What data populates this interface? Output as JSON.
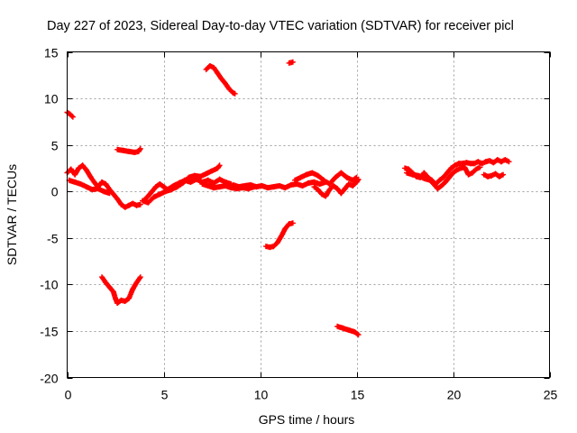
{
  "chart_data": {
    "type": "scatter",
    "title": "Day 227 of 2023, Sidereal Day-to-day VTEC variation (SDTVAR) for receiver picl",
    "xlabel": "GPS time / hours",
    "ylabel": "SDTVAR / TECUs",
    "xlim": [
      0,
      25
    ],
    "ylim": [
      -20,
      15
    ],
    "xticks": [
      0,
      5,
      10,
      15,
      20,
      25
    ],
    "yticks": [
      -20,
      -15,
      -10,
      -5,
      0,
      5,
      10,
      15
    ],
    "grid": true,
    "marker": "+",
    "color": "#ff0000",
    "segments": [
      {
        "name": "arc-01",
        "points": [
          [
            0.0,
            8.5
          ],
          [
            0.15,
            8.3
          ],
          [
            0.3,
            8.0
          ]
        ]
      },
      {
        "name": "arc-02",
        "points": [
          [
            0.0,
            2.0
          ],
          [
            0.2,
            2.4
          ],
          [
            0.4,
            1.8
          ],
          [
            0.6,
            2.5
          ],
          [
            0.8,
            2.8
          ],
          [
            1.0,
            2.3
          ],
          [
            1.2,
            1.6
          ],
          [
            1.4,
            1.0
          ],
          [
            1.6,
            0.5
          ],
          [
            1.8,
            1.0
          ],
          [
            2.0,
            0.8
          ],
          [
            2.2,
            0.2
          ],
          [
            2.4,
            -0.3
          ],
          [
            2.6,
            -0.8
          ],
          [
            2.8,
            -1.4
          ],
          [
            3.0,
            -1.7
          ],
          [
            3.2,
            -1.5
          ],
          [
            3.4,
            -1.3
          ],
          [
            3.6,
            -1.5
          ],
          [
            3.8,
            -1.4
          ]
        ]
      },
      {
        "name": "arc-03",
        "points": [
          [
            0.1,
            1.2
          ],
          [
            0.4,
            1.0
          ],
          [
            0.7,
            0.8
          ],
          [
            1.0,
            0.5
          ],
          [
            1.3,
            0.2
          ],
          [
            1.6,
            0.3
          ],
          [
            1.9,
            0.0
          ],
          [
            2.2,
            -0.2
          ]
        ]
      },
      {
        "name": "arc-04",
        "points": [
          [
            2.6,
            4.5
          ],
          [
            2.9,
            4.4
          ],
          [
            3.2,
            4.3
          ],
          [
            3.5,
            4.2
          ],
          [
            3.7,
            4.3
          ],
          [
            3.8,
            4.6
          ]
        ]
      },
      {
        "name": "arc-05",
        "points": [
          [
            1.8,
            -9.2
          ],
          [
            2.0,
            -9.8
          ],
          [
            2.2,
            -10.3
          ],
          [
            2.4,
            -10.8
          ],
          [
            2.5,
            -11.5
          ],
          [
            2.6,
            -12.0
          ],
          [
            2.8,
            -11.7
          ],
          [
            3.0,
            -11.8
          ],
          [
            3.2,
            -11.5
          ],
          [
            3.4,
            -10.5
          ],
          [
            3.6,
            -9.8
          ],
          [
            3.8,
            -9.2
          ]
        ]
      },
      {
        "name": "arc-06",
        "points": [
          [
            4.0,
            -0.9
          ],
          [
            4.2,
            -0.5
          ],
          [
            4.4,
            0.0
          ],
          [
            4.6,
            0.5
          ],
          [
            4.8,
            0.8
          ],
          [
            5.0,
            0.5
          ],
          [
            5.2,
            0.2
          ],
          [
            5.5,
            0.6
          ],
          [
            5.8,
            0.9
          ],
          [
            6.1,
            1.2
          ],
          [
            6.4,
            1.0
          ],
          [
            6.7,
            1.3
          ],
          [
            7.0,
            1.0
          ],
          [
            7.3,
            1.2
          ],
          [
            7.6,
            0.9
          ],
          [
            7.9,
            1.3
          ],
          [
            8.2,
            1.0
          ],
          [
            8.5,
            0.8
          ]
        ]
      },
      {
        "name": "arc-07",
        "points": [
          [
            3.9,
            -1.0
          ],
          [
            4.2,
            -1.2
          ],
          [
            4.5,
            -0.6
          ],
          [
            4.8,
            -0.3
          ],
          [
            5.1,
            0.0
          ],
          [
            5.4,
            0.2
          ],
          [
            5.7,
            0.5
          ],
          [
            6.0,
            0.9
          ],
          [
            6.3,
            1.5
          ],
          [
            6.6,
            1.7
          ],
          [
            6.9,
            1.6
          ],
          [
            7.2,
            1.9
          ],
          [
            7.5,
            2.2
          ],
          [
            7.8,
            2.5
          ],
          [
            7.9,
            2.8
          ]
        ]
      },
      {
        "name": "arc-08",
        "points": [
          [
            8.6,
            0.7
          ],
          [
            8.9,
            0.5
          ],
          [
            9.2,
            0.6
          ],
          [
            9.5,
            0.7
          ],
          [
            9.8,
            0.5
          ],
          [
            10.1,
            0.6
          ],
          [
            10.4,
            0.4
          ],
          [
            10.7,
            0.5
          ],
          [
            11.0,
            0.6
          ],
          [
            11.3,
            0.4
          ],
          [
            11.6,
            0.7
          ],
          [
            11.9,
            0.8
          ],
          [
            12.2,
            0.6
          ],
          [
            12.5,
            0.9
          ],
          [
            12.8,
            1.0
          ],
          [
            13.1,
            0.8
          ],
          [
            13.4,
            1.0
          ]
        ]
      },
      {
        "name": "arc-09",
        "points": [
          [
            7.0,
            0.8
          ],
          [
            7.3,
            0.6
          ],
          [
            7.6,
            0.4
          ],
          [
            7.9,
            0.5
          ],
          [
            8.2,
            0.6
          ],
          [
            8.5,
            0.4
          ],
          [
            8.8,
            0.3
          ],
          [
            9.1,
            0.4
          ],
          [
            9.4,
            0.3
          ],
          [
            9.7,
            0.5
          ]
        ]
      },
      {
        "name": "arc-10",
        "points": [
          [
            11.8,
            1.2
          ],
          [
            12.1,
            1.5
          ],
          [
            12.4,
            1.8
          ],
          [
            12.7,
            2.0
          ],
          [
            13.0,
            1.7
          ],
          [
            13.3,
            1.2
          ],
          [
            13.6,
            0.8
          ],
          [
            13.9,
            1.5
          ],
          [
            14.2,
            2.0
          ],
          [
            14.5,
            1.5
          ],
          [
            14.8,
            1.2
          ],
          [
            15.0,
            1.5
          ]
        ]
      },
      {
        "name": "arc-11",
        "points": [
          [
            12.8,
            0.5
          ],
          [
            13.0,
            0.2
          ],
          [
            13.2,
            -0.3
          ],
          [
            13.4,
            -0.5
          ],
          [
            13.6,
            0.2
          ],
          [
            13.8,
            0.6
          ],
          [
            14.0,
            0.3
          ],
          [
            14.2,
            -0.2
          ],
          [
            14.4,
            0.3
          ],
          [
            14.6,
            0.8
          ],
          [
            14.8,
            0.6
          ],
          [
            15.0,
            1.0
          ],
          [
            15.1,
            1.3
          ]
        ]
      },
      {
        "name": "arc-12",
        "points": [
          [
            7.2,
            13.1
          ],
          [
            7.4,
            13.5
          ],
          [
            7.6,
            13.3
          ],
          [
            7.8,
            12.7
          ],
          [
            8.0,
            12.1
          ],
          [
            8.2,
            11.6
          ],
          [
            8.4,
            11.0
          ],
          [
            8.6,
            10.6
          ],
          [
            8.7,
            10.5
          ]
        ]
      },
      {
        "name": "arc-13",
        "points": [
          [
            11.5,
            13.8
          ],
          [
            11.7,
            13.9
          ]
        ]
      },
      {
        "name": "arc-14",
        "points": [
          [
            10.3,
            -5.9
          ],
          [
            10.5,
            -6.0
          ],
          [
            10.7,
            -5.9
          ],
          [
            10.9,
            -5.5
          ],
          [
            11.1,
            -4.8
          ],
          [
            11.3,
            -4.0
          ],
          [
            11.5,
            -3.5
          ],
          [
            11.7,
            -3.4
          ]
        ]
      },
      {
        "name": "arc-15",
        "points": [
          [
            14.0,
            -14.5
          ],
          [
            14.3,
            -14.7
          ],
          [
            14.6,
            -14.9
          ],
          [
            14.9,
            -15.1
          ],
          [
            15.1,
            -15.4
          ]
        ]
      },
      {
        "name": "arc-16",
        "points": [
          [
            17.5,
            2.5
          ],
          [
            17.7,
            2.4
          ],
          [
            17.9,
            2.0
          ],
          [
            18.1,
            1.6
          ],
          [
            18.3,
            1.5
          ],
          [
            18.5,
            2.0
          ],
          [
            18.7,
            1.5
          ],
          [
            18.9,
            1.2
          ],
          [
            19.1,
            0.8
          ],
          [
            19.3,
            1.2
          ],
          [
            19.5,
            1.5
          ],
          [
            19.7,
            2.0
          ],
          [
            19.9,
            2.5
          ],
          [
            20.1,
            2.8
          ],
          [
            20.3,
            3.0
          ],
          [
            20.5,
            3.0
          ],
          [
            20.7,
            3.1
          ],
          [
            20.9,
            3.0
          ],
          [
            21.1,
            3.0
          ],
          [
            21.3,
            3.2
          ],
          [
            21.5,
            3.0
          ],
          [
            21.7,
            3.2
          ],
          [
            21.9,
            3.3
          ],
          [
            22.1,
            3.1
          ],
          [
            22.3,
            3.4
          ],
          [
            22.5,
            3.2
          ],
          [
            22.7,
            3.4
          ],
          [
            22.9,
            3.2
          ]
        ]
      },
      {
        "name": "arc-17",
        "points": [
          [
            17.6,
            2.0
          ],
          [
            17.9,
            1.8
          ],
          [
            18.2,
            1.7
          ],
          [
            18.5,
            1.4
          ],
          [
            18.8,
            1.2
          ],
          [
            19.0,
            0.8
          ],
          [
            19.2,
            0.3
          ],
          [
            19.4,
            0.6
          ],
          [
            19.6,
            1.0
          ],
          [
            19.8,
            1.5
          ],
          [
            20.0,
            2.0
          ],
          [
            20.2,
            2.3
          ],
          [
            20.4,
            2.5
          ],
          [
            20.6,
            2.6
          ],
          [
            20.8,
            1.8
          ],
          [
            21.0,
            2.0
          ],
          [
            21.2,
            2.4
          ],
          [
            21.4,
            2.6
          ]
        ]
      },
      {
        "name": "arc-18",
        "points": [
          [
            21.6,
            1.8
          ],
          [
            21.8,
            1.6
          ],
          [
            22.0,
            1.7
          ],
          [
            22.2,
            1.9
          ],
          [
            22.4,
            1.6
          ],
          [
            22.6,
            1.8
          ]
        ]
      }
    ]
  }
}
